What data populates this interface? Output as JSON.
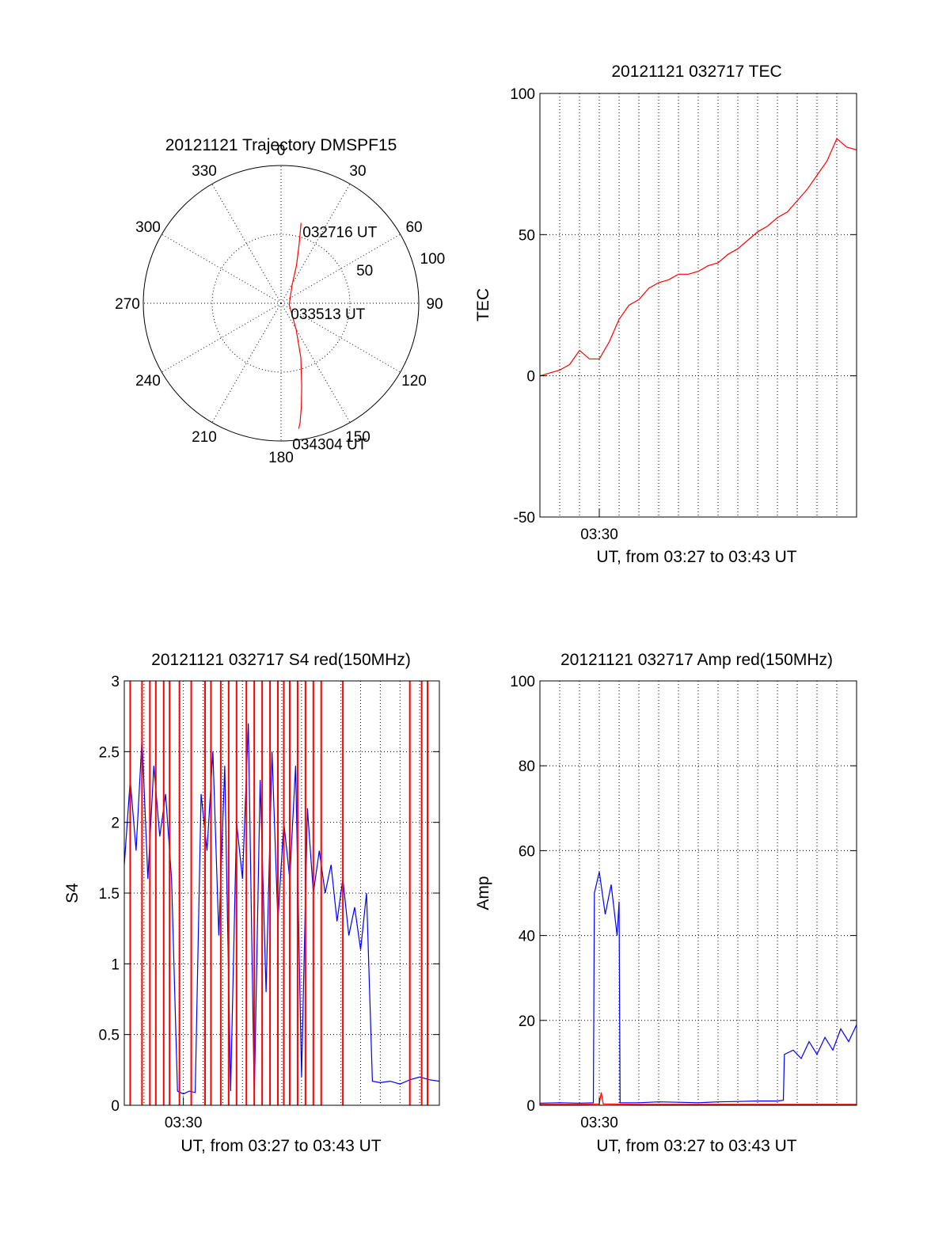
{
  "chart_data": [
    {
      "type": "polar",
      "title": "20121121 Trajectory DMSPF15",
      "azimuth_labels": [
        "0",
        "30",
        "60",
        "90",
        "120",
        "150",
        "180",
        "210",
        "240",
        "270",
        "300",
        "330"
      ],
      "azimuth_values": [
        0,
        30,
        60,
        90,
        120,
        150,
        180,
        210,
        240,
        270,
        300,
        330
      ],
      "radial_labels": [
        "50",
        "100"
      ],
      "radial_values": [
        50,
        100
      ],
      "grid": true,
      "series": [
        {
          "color": "#ff0000",
          "points": [
            [
              14,
              60
            ],
            [
              17,
              45
            ],
            [
              22,
              30
            ],
            [
              32,
              15
            ],
            [
              100,
              6
            ],
            [
              150,
              22
            ],
            [
              160,
              42
            ],
            [
              166,
              62
            ],
            [
              169,
              77
            ],
            [
              171,
              88
            ],
            [
              172,
              92
            ]
          ]
        }
      ],
      "annotations": [
        {
          "text": "032716 UT",
          "az": 14,
          "r": 60
        },
        {
          "text": "033513 UT",
          "az": 100,
          "r": 6
        },
        {
          "text": "034304 UT",
          "az": 172,
          "r": 92
        }
      ]
    },
    {
      "type": "line",
      "title": "20121121 032717 TEC",
      "xlabel": "UT, from 03:27 to 03:43 UT",
      "ylabel": "TEC",
      "xlim": [
        0,
        16
      ],
      "ylim": [
        -50,
        100
      ],
      "yticks": [
        "-50",
        "0",
        "50",
        "100"
      ],
      "ytick_values": [
        -50,
        0,
        50,
        100
      ],
      "xtick_labels": [
        "03:30"
      ],
      "xtick_values": [
        3
      ],
      "grid": true,
      "series": [
        {
          "color": "#ff0000",
          "x": [
            0,
            0.5,
            1,
            1.5,
            2,
            2.5,
            3,
            3.5,
            4,
            4.5,
            5,
            5.5,
            6,
            6.5,
            7,
            7.5,
            8,
            8.5,
            9,
            9.5,
            10,
            10.5,
            11,
            11.5,
            12,
            12.5,
            13,
            13.5,
            14,
            14.5,
            15,
            15.5,
            16
          ],
          "y": [
            0,
            1,
            2,
            4,
            9,
            6,
            6,
            12,
            20,
            25,
            27,
            31,
            33,
            34,
            36,
            36,
            37,
            39,
            40,
            43,
            45,
            48,
            51,
            53,
            56,
            58,
            62,
            66,
            71,
            76,
            84,
            81,
            80
          ]
        }
      ]
    },
    {
      "type": "line",
      "title": "20121121 032717 S4 red(150MHz)",
      "xlabel": "UT, from 03:27 to 03:43 UT",
      "ylabel": "S4",
      "xlim": [
        0,
        16
      ],
      "ylim": [
        0,
        3
      ],
      "yticks": [
        "0",
        "0.5",
        "1",
        "1.5",
        "2",
        "2.5",
        "3"
      ],
      "ytick_values": [
        0,
        0.5,
        1,
        1.5,
        2,
        2.5,
        3
      ],
      "xtick_labels": [
        "03:30"
      ],
      "xtick_values": [
        3
      ],
      "grid": true,
      "series": [
        {
          "color": "#0000ff",
          "x": [
            0,
            0.3,
            0.6,
            0.9,
            1.2,
            1.5,
            1.8,
            2.1,
            2.4,
            2.7,
            3.0,
            3.3,
            3.6,
            3.9,
            4.2,
            4.5,
            4.8,
            5.1,
            5.4,
            5.7,
            6.0,
            6.3,
            6.6,
            6.9,
            7.2,
            7.5,
            7.8,
            8.1,
            8.4,
            8.7,
            9.0,
            9.3,
            9.6,
            9.9,
            10.2,
            10.5,
            10.8,
            11.1,
            11.4,
            11.7,
            12.0,
            12.3,
            12.6,
            13.0,
            13.5,
            14.0,
            14.5,
            15.0,
            15.5,
            16.0
          ],
          "y": [
            1.7,
            2.3,
            1.8,
            2.6,
            1.6,
            2.4,
            1.9,
            2.2,
            1.6,
            0.1,
            0.08,
            0.1,
            0.09,
            2.2,
            1.8,
            2.5,
            1.2,
            2.4,
            0.1,
            2.0,
            1.6,
            2.7,
            0.05,
            2.3,
            0.8,
            2.5,
            1.3,
            2.0,
            1.6,
            2.4,
            0.2,
            2.1,
            1.5,
            1.8,
            1.5,
            1.7,
            1.3,
            1.6,
            1.2,
            1.4,
            1.1,
            1.5,
            0.17,
            0.16,
            0.17,
            0.15,
            0.18,
            0.2,
            0.18,
            0.17
          ]
        },
        {
          "color": "#ff0000",
          "spikes_x": [
            0.3,
            0.9,
            1.3,
            1.6,
            2.0,
            2.3,
            2.8,
            3.4,
            4.1,
            4.4,
            4.9,
            5.3,
            5.7,
            6.2,
            6.6,
            7.0,
            7.4,
            7.8,
            8.1,
            8.4,
            8.8,
            9.2,
            9.6,
            10.0,
            11.1,
            14.5,
            15.1,
            15.4
          ]
        }
      ]
    },
    {
      "type": "line",
      "title": "20121121 032717 Amp red(150MHz)",
      "xlabel": "UT, from 03:27 to 03:43 UT",
      "ylabel": "Amp",
      "xlim": [
        0,
        16
      ],
      "ylim": [
        0,
        100
      ],
      "yticks": [
        "0",
        "20",
        "40",
        "60",
        "80",
        "100"
      ],
      "ytick_values": [
        0,
        20,
        40,
        60,
        80,
        100
      ],
      "xtick_labels": [
        "03:30"
      ],
      "xtick_values": [
        3
      ],
      "grid": true,
      "series": [
        {
          "color": "#0000ff",
          "x": [
            0,
            1,
            2,
            2.7,
            2.75,
            3.0,
            3.3,
            3.6,
            3.9,
            4.0,
            4.05,
            5,
            6,
            7,
            8,
            9,
            10,
            11,
            12,
            12.3,
            12.35,
            12.8,
            13.2,
            13.6,
            14.0,
            14.4,
            14.8,
            15.2,
            15.6,
            16.0
          ],
          "y": [
            0.5,
            0.6,
            0.5,
            0.6,
            50,
            55,
            45,
            52,
            40,
            48,
            0.6,
            0.6,
            0.8,
            0.7,
            0.6,
            0.8,
            0.9,
            1.0,
            1.0,
            1.2,
            12,
            13,
            11,
            15,
            12,
            16,
            13,
            18,
            15,
            19
          ]
        },
        {
          "color": "#ff0000",
          "x": [
            0,
            2,
            3,
            3.1,
            3.2,
            5,
            8,
            10,
            12,
            14,
            16
          ],
          "y": [
            0.2,
            0.2,
            0.3,
            3,
            0.3,
            0.2,
            0.2,
            0.2,
            0.2,
            0.2,
            0.2
          ]
        }
      ]
    }
  ]
}
